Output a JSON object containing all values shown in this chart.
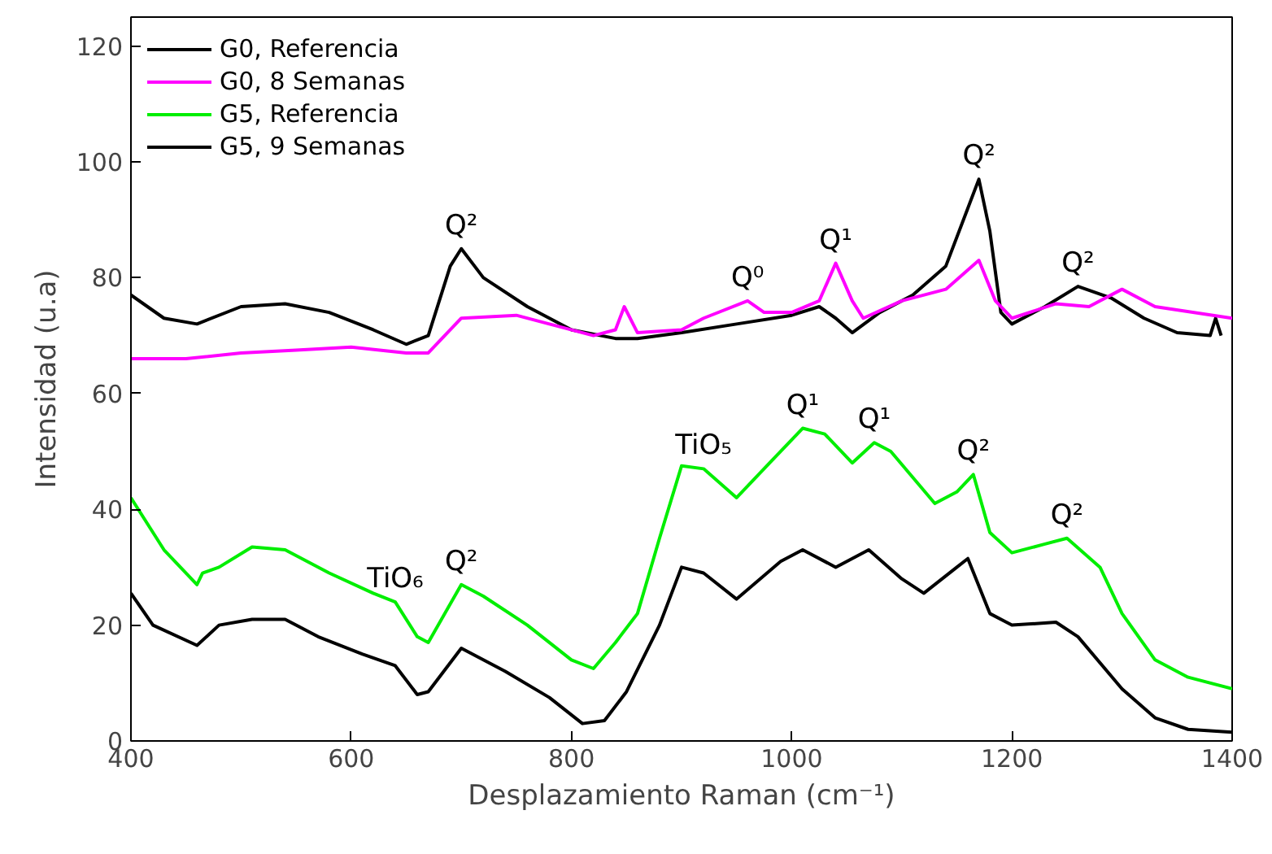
{
  "chart_data": {
    "type": "line",
    "xlabel": "Desplazamiento Raman (cm⁻¹)",
    "ylabel": "Intensidad (u.a)",
    "xlim": [
      400,
      1400
    ],
    "ylim": [
      0,
      125
    ],
    "xticks": [
      400,
      600,
      800,
      1000,
      1200,
      1400
    ],
    "yticks": [
      0,
      20,
      40,
      60,
      80,
      100,
      120
    ],
    "grid": false,
    "legend": "top left",
    "marker": "none",
    "line_style": "solid",
    "series": [
      {
        "name": "G0, Referencia",
        "color": "#000000",
        "x": [
          400,
          430,
          460,
          500,
          540,
          580,
          620,
          650,
          670,
          690,
          700,
          720,
          760,
          800,
          840,
          860,
          900,
          950,
          1000,
          1025,
          1040,
          1055,
          1080,
          1110,
          1140,
          1160,
          1170,
          1180,
          1190,
          1200,
          1230,
          1260,
          1290,
          1320,
          1350,
          1380,
          1385,
          1390
        ],
        "values": [
          77,
          73,
          72,
          75,
          75.5,
          74,
          71,
          68.5,
          70,
          82,
          85,
          80,
          75,
          71,
          69.5,
          69.5,
          70.5,
          72,
          73.5,
          75,
          73,
          70.5,
          74,
          77,
          82,
          92,
          97,
          88,
          74,
          72,
          75,
          78.5,
          76.5,
          73,
          70.5,
          70,
          73,
          70
        ]
      },
      {
        "name": "G0, 8 Semanas",
        "color": "#ff00ff",
        "x": [
          400,
          450,
          500,
          550,
          600,
          650,
          670,
          700,
          750,
          780,
          820,
          840,
          848,
          860,
          900,
          920,
          960,
          975,
          1000,
          1025,
          1040,
          1055,
          1065,
          1100,
          1140,
          1170,
          1185,
          1200,
          1240,
          1270,
          1300,
          1330,
          1400
        ],
        "values": [
          66,
          66,
          67,
          67.5,
          68,
          67,
          67,
          73,
          73.5,
          72,
          70,
          71,
          75,
          70.5,
          71,
          73,
          76,
          74,
          74,
          76,
          82.5,
          76,
          73,
          76,
          78,
          83,
          76,
          73,
          75.5,
          75,
          78,
          75,
          73
        ]
      },
      {
        "name": "G5, Referencia",
        "color": "#00ee00",
        "x": [
          400,
          430,
          460,
          465,
          480,
          510,
          540,
          580,
          620,
          640,
          660,
          670,
          700,
          720,
          760,
          800,
          820,
          840,
          860,
          880,
          900,
          920,
          950,
          980,
          1010,
          1030,
          1055,
          1075,
          1090,
          1130,
          1150,
          1165,
          1180,
          1200,
          1230,
          1250,
          1280,
          1300,
          1330,
          1360,
          1400
        ],
        "values": [
          42,
          33,
          27,
          29,
          30,
          33.5,
          33,
          29,
          25.5,
          24,
          18,
          17,
          27,
          25,
          20,
          14,
          12.5,
          17,
          22,
          35,
          47.5,
          47,
          42,
          48,
          54,
          53,
          48,
          51.5,
          50,
          41,
          43,
          46,
          36,
          32.5,
          34,
          35,
          30,
          22,
          14,
          11,
          9
        ]
      },
      {
        "name": "G5, 9 Semanas",
        "color": "#000000",
        "x": [
          400,
          420,
          460,
          480,
          510,
          540,
          570,
          610,
          640,
          660,
          670,
          700,
          740,
          780,
          810,
          830,
          850,
          880,
          900,
          920,
          950,
          990,
          1010,
          1040,
          1070,
          1100,
          1120,
          1150,
          1160,
          1180,
          1200,
          1240,
          1260,
          1300,
          1330,
          1360,
          1400
        ],
        "values": [
          25.5,
          20,
          16.5,
          20,
          21,
          21,
          18,
          15,
          13,
          8,
          8.5,
          16,
          12,
          7.5,
          3,
          3.5,
          8.5,
          20,
          30,
          29,
          24.5,
          31,
          33,
          30,
          33,
          28,
          25.5,
          30,
          31.5,
          22,
          20,
          20.5,
          18,
          9,
          4,
          2,
          1.5
        ]
      }
    ],
    "annotations": [
      {
        "text": "Q²",
        "x": 700,
        "y": 85
      },
      {
        "text": "Q⁰",
        "x": 960,
        "y": 76
      },
      {
        "text": "Q¹",
        "x": 1040,
        "y": 82.5
      },
      {
        "text": "Q²",
        "x": 1170,
        "y": 97
      },
      {
        "text": "Q²",
        "x": 1260,
        "y": 78.5
      },
      {
        "text": "TiO₅",
        "x": 920,
        "y": 47
      },
      {
        "text": "Q¹",
        "x": 1010,
        "y": 54
      },
      {
        "text": "Q¹",
        "x": 1075,
        "y": 51.5
      },
      {
        "text": "Q²",
        "x": 1165,
        "y": 46
      },
      {
        "text": "Q²",
        "x": 1250,
        "y": 35
      },
      {
        "text": "TiO₆",
        "x": 640,
        "y": 24
      },
      {
        "text": "Q²",
        "x": 700,
        "y": 27
      }
    ]
  }
}
